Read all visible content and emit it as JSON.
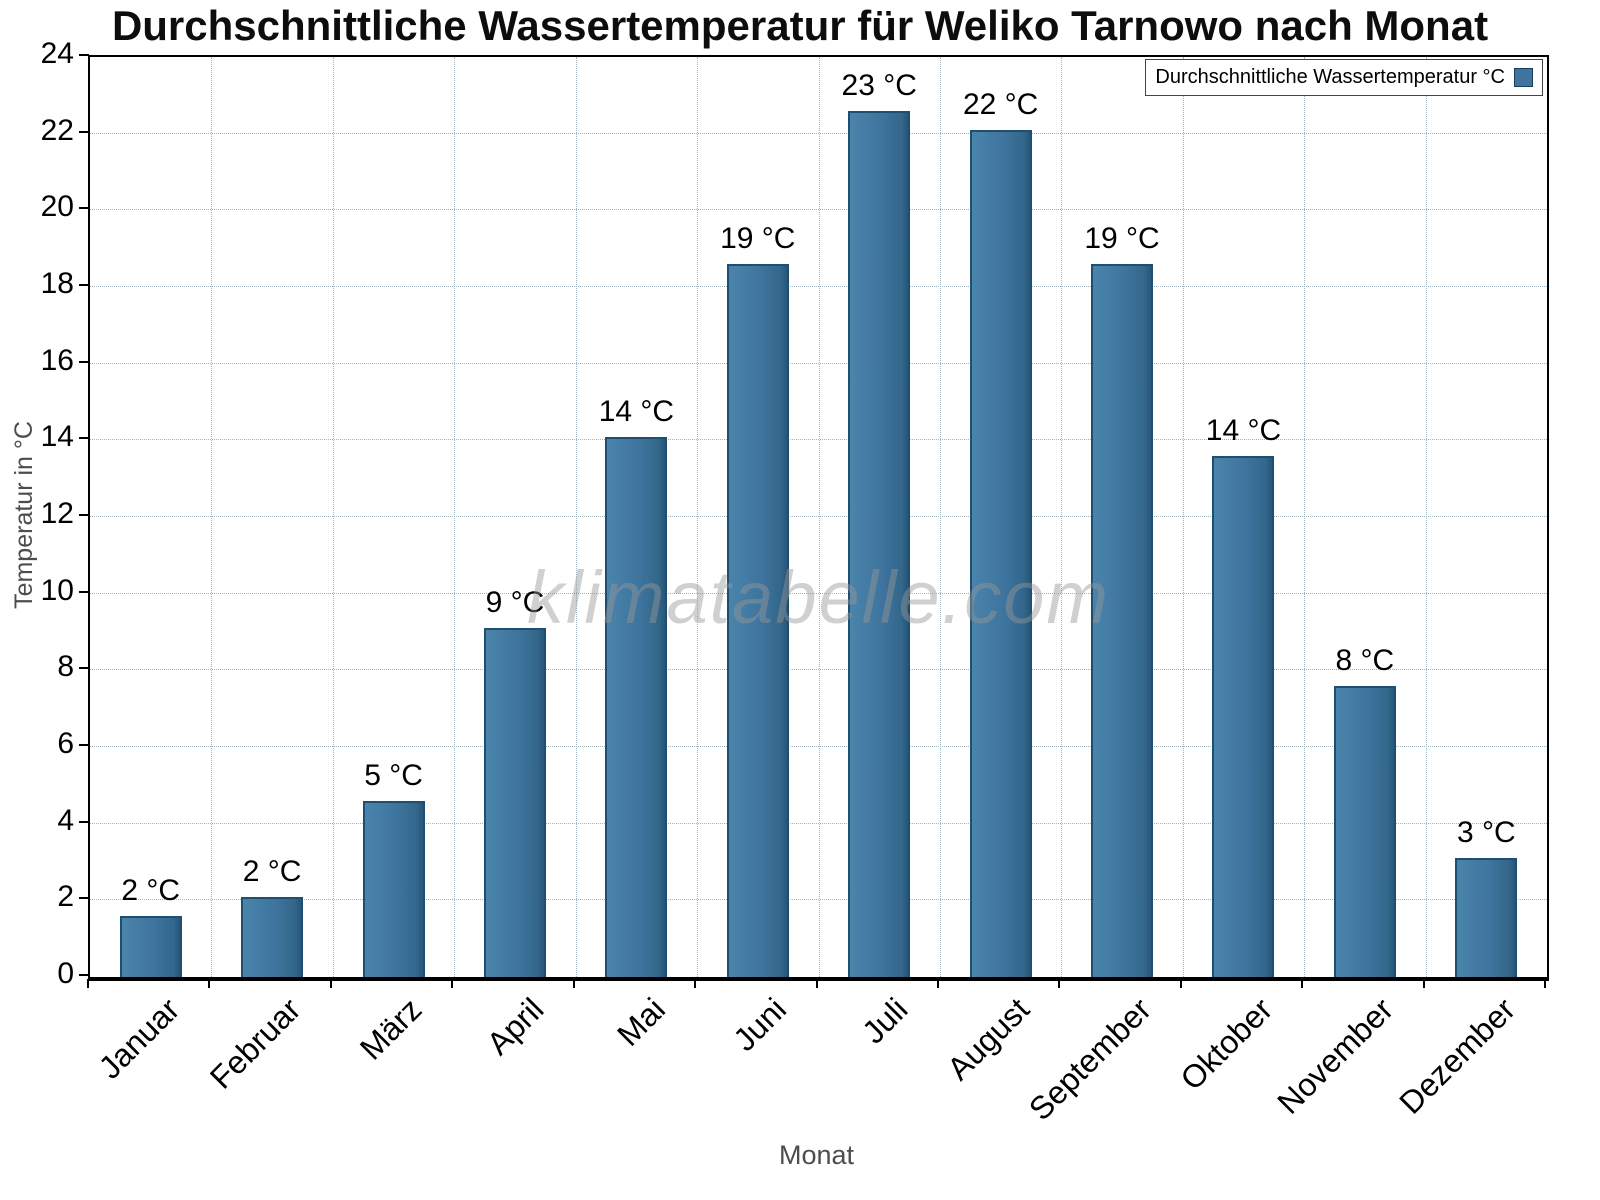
{
  "title": "Durchschnittliche Wassertemperatur für Weliko Tarnowo nach Monat",
  "watermark": "klimatabelle.com",
  "axes": {
    "xlabel": "Monat",
    "ylabel": "Temperatur in °C"
  },
  "legend": {
    "label": "Durchschnittliche Wassertemperatur °C",
    "swatch_color": "#3e749e"
  },
  "chart_data": {
    "type": "bar",
    "title": "Durchschnittliche Wassertemperatur für Weliko Tarnowo nach Monat",
    "xlabel": "Monat",
    "ylabel": "Temperatur in °C",
    "ylim": [
      0,
      24
    ],
    "ytick_step": 2,
    "grid": true,
    "legend_position": "top-right",
    "legend_label": "Durchschnittliche Wassertemperatur °C",
    "categories": [
      "Januar",
      "Februar",
      "März",
      "April",
      "Mai",
      "Juni",
      "Juli",
      "August",
      "September",
      "Oktober",
      "November",
      "Dezember"
    ],
    "values": [
      2,
      2,
      5,
      9,
      14,
      19,
      23,
      22,
      19,
      14,
      8,
      3
    ],
    "bar_heights_plotted": [
      1.6,
      2.1,
      4.6,
      9.1,
      14.1,
      18.6,
      22.6,
      22.1,
      18.6,
      13.6,
      7.6,
      3.1
    ],
    "value_labels": [
      "2 °C",
      "2 °C",
      "5 °C",
      "9 °C",
      "14 °C",
      "19 °C",
      "23 °C",
      "22 °C",
      "19 °C",
      "14 °C",
      "8 °C",
      "3 °C"
    ],
    "bar_color": "#3e749e",
    "bar_edge_color": "#1f4f70"
  }
}
